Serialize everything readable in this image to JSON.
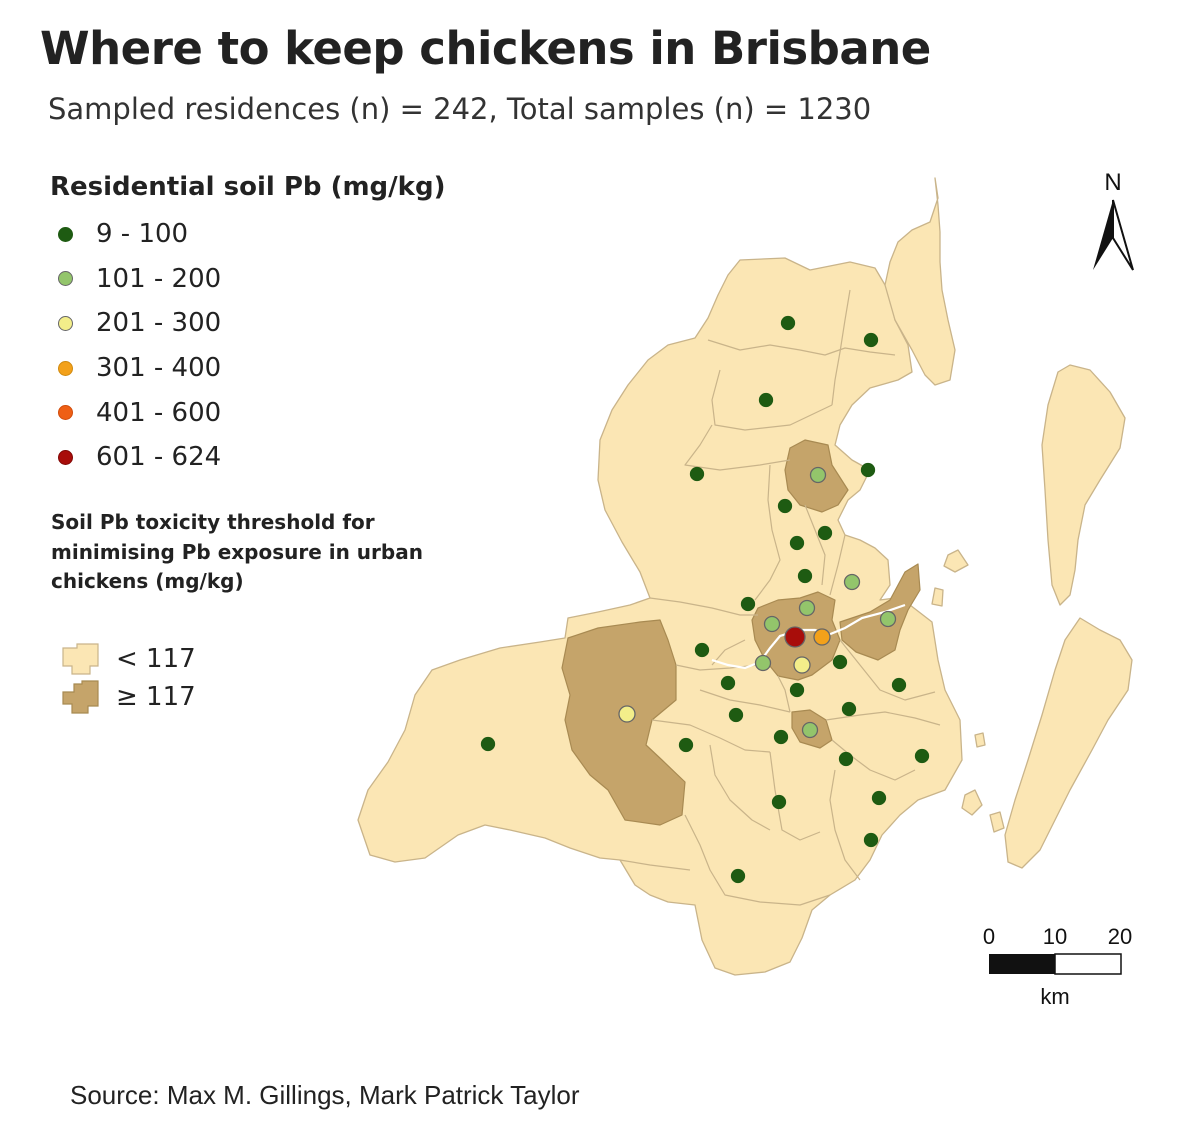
{
  "title": "Where to keep chickens in Brisbane",
  "subtitle": "Sampled residences (n) = 242, Total samples (n) = 1230",
  "legend_points": {
    "title": "Residential soil Pb (mg/kg)",
    "items": [
      {
        "label": "9 - 100",
        "color": "#1e5b12"
      },
      {
        "label": "101 - 200",
        "color": "#93c56b"
      },
      {
        "label": "201 - 300",
        "color": "#f3ee8a"
      },
      {
        "label": "301 - 400",
        "color": "#f3a11a"
      },
      {
        "label": "401 - 600",
        "color": "#ef5f14"
      },
      {
        "label": "601 - 624",
        "color": "#a80d0a"
      }
    ]
  },
  "legend_threshold": {
    "title": "Soil Pb toxicity threshold for minimising Pb exposure in urban chickens (mg/kg)",
    "items": [
      {
        "label": "< 117",
        "color": "#fbe6b4"
      },
      {
        "label": "≥ 117",
        "color": "#c5a46a"
      }
    ]
  },
  "map": {
    "land_color": "#fbe6b4",
    "border_color": "#c9b48a",
    "above_threshold_color": "#c5a46a"
  },
  "north_arrow": {
    "label": "N"
  },
  "scale_bar": {
    "labels": [
      "0",
      "10",
      "20"
    ],
    "unit": "km"
  },
  "source": "Source: Max M. Gillings, Mark Patrick Taylor"
}
